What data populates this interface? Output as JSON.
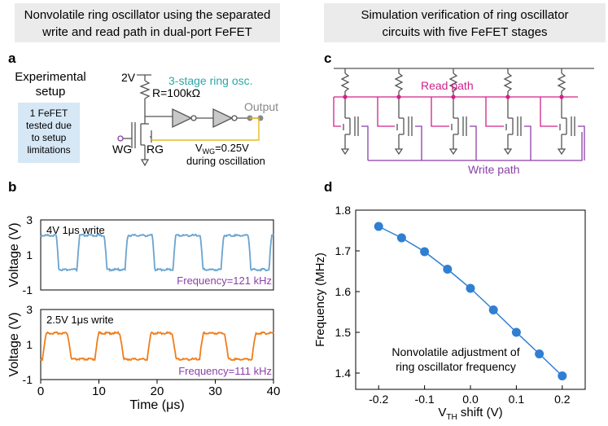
{
  "colors": {
    "header_bg": "#ebebeb",
    "teal": "#2aa7a8",
    "magenta": "#d3208a",
    "purple": "#8b3fa8",
    "orange": "#f07d1a",
    "blue_wave": "#6aa3cf",
    "setup_box": "#d6e7f5",
    "gold": "#e8b923",
    "scatter": "#2f7fd3"
  },
  "headers": {
    "left": [
      "Nonvolatile ring oscillator using the separated",
      "write and read path in dual-port FeFET"
    ],
    "right": [
      "Simulation verification of ring oscillator",
      "circuits with five FeFET stages"
    ]
  },
  "panels": {
    "a": "a",
    "b": "b",
    "c": "c",
    "d": "d"
  },
  "panel_a": {
    "exp_title": [
      "Experimental",
      "setup"
    ],
    "setup_note": [
      "1 FeFET",
      "tested due",
      "to setup",
      "limitations"
    ],
    "vdd": "2V",
    "resistor": "R=100kΩ",
    "ring_title": "3-stage ring osc.",
    "output": "Output",
    "wg": "WG",
    "rg": "RG",
    "vwg_main": "V",
    "vwg_sub": "WG",
    "vwg_rest": "=0.25V",
    "during": "during oscillation"
  },
  "panel_b": {
    "top_label": "4V 1μs write",
    "top_freq": "Frequency=121 kHz",
    "bottom_label": "2.5V 1μs write",
    "bottom_freq": "Frequency=111 kHz",
    "ylabel": "Voltage (V)",
    "yticks": [
      "3",
      "1",
      "-1"
    ],
    "xlabel": "Time (μs)",
    "xticks": [
      "0",
      "10",
      "20",
      "30",
      "40"
    ]
  },
  "panel_c": {
    "read_path": "Read path",
    "write_path": "Write path"
  },
  "chart_data": {
    "type": "scatter",
    "title": "",
    "annotation": [
      "Nonvolatile adjustment of",
      "ring oscillator frequency"
    ],
    "xlabel_main": "V",
    "xlabel_sub": "TH",
    "xlabel_rest": " shift (V)",
    "ylabel": "Frequency (MHz)",
    "x": [
      -0.2,
      -0.15,
      -0.1,
      -0.05,
      0.0,
      0.05,
      0.1,
      0.15,
      0.2
    ],
    "y": [
      1.76,
      1.732,
      1.698,
      1.655,
      1.608,
      1.555,
      1.5,
      1.447,
      1.393
    ],
    "xlim": [
      -0.25,
      0.25
    ],
    "ylim": [
      1.36,
      1.8
    ],
    "xticks": [
      -0.2,
      -0.1,
      0.0,
      0.1,
      0.2
    ],
    "xtick_labels": [
      "-0.2",
      "-0.1",
      "0.0",
      "0.1",
      "0.2"
    ],
    "yticks": [
      1.4,
      1.5,
      1.6,
      1.7,
      1.8
    ],
    "ytick_labels": [
      "1.4",
      "1.5",
      "1.6",
      "1.7",
      "1.8"
    ]
  }
}
